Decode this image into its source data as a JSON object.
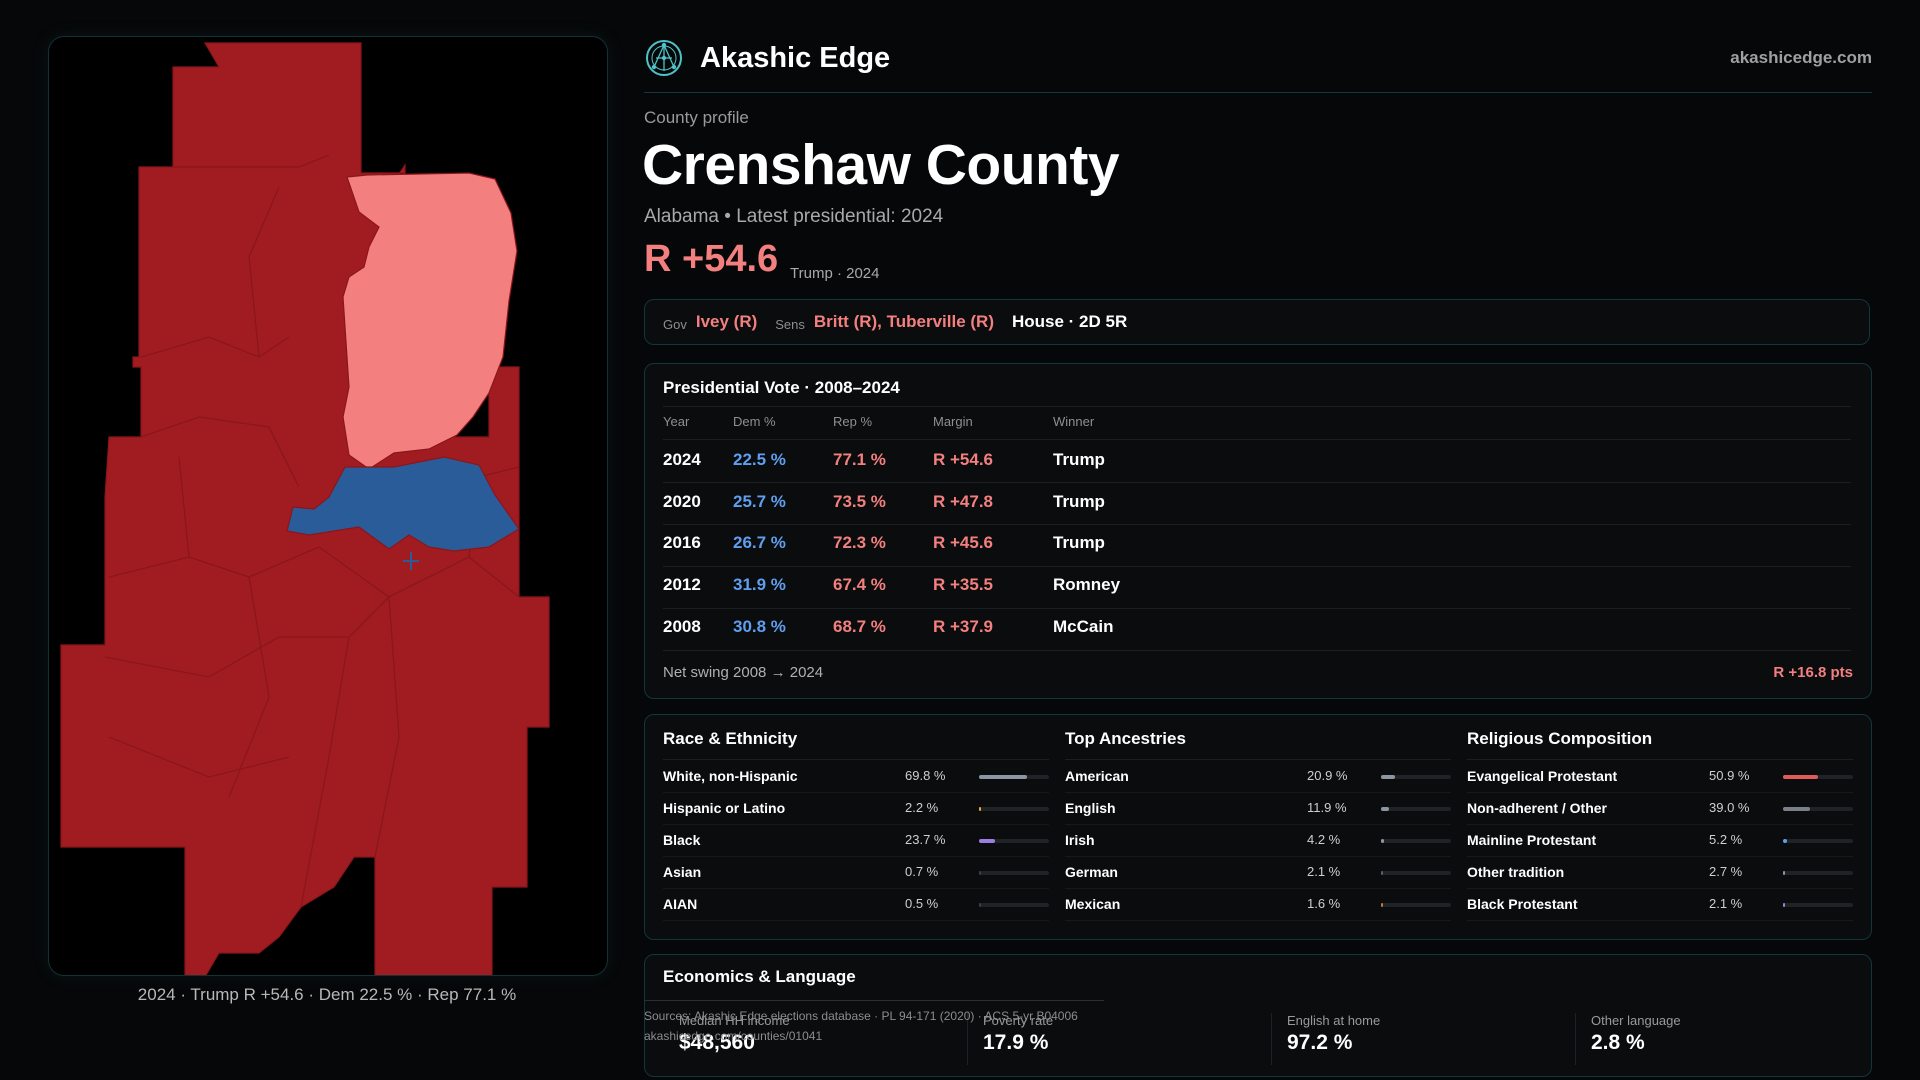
{
  "brand": {
    "name": "Akashic Edge",
    "domain": "akashicedge.com",
    "logo_icon": "network-globe-icon"
  },
  "profile": {
    "kicker": "County profile",
    "county": "Crenshaw County",
    "subtitle": "Alabama • Latest presidential: 2024",
    "margin": "R +54.6",
    "margin_note": "Trump · 2024"
  },
  "officials": {
    "gov_label": "Gov",
    "gov": "Ivey (R)",
    "sens_label": "Sens",
    "sens": "Britt (R), Tuberville (R)",
    "house": "House · 2D 5R"
  },
  "votes": {
    "title": "Presidential Vote · 2008–2024",
    "headers": {
      "year": "Year",
      "dem": "Dem %",
      "rep": "Rep %",
      "margin": "Margin",
      "winner": "Winner"
    },
    "rows": [
      {
        "year": "2024",
        "dem": "22.5 %",
        "rep": "77.1 %",
        "margin": "R +54.6",
        "winner": "Trump"
      },
      {
        "year": "2020",
        "dem": "25.7 %",
        "rep": "73.5 %",
        "margin": "R +47.8",
        "winner": "Trump"
      },
      {
        "year": "2016",
        "dem": "26.7 %",
        "rep": "72.3 %",
        "margin": "R +45.6",
        "winner": "Trump"
      },
      {
        "year": "2012",
        "dem": "31.9 %",
        "rep": "67.4 %",
        "margin": "R +35.5",
        "winner": "Romney"
      },
      {
        "year": "2008",
        "dem": "30.8 %",
        "rep": "68.7 %",
        "margin": "R +37.9",
        "winner": "McCain"
      }
    ],
    "swing_label": "Net swing 2008 → 2024",
    "swing_value": "R +16.8 pts"
  },
  "demographics": [
    {
      "title": "Race & Ethnicity",
      "rows": [
        {
          "label": "White, non-Hispanic",
          "value": "69.8 %",
          "share": 0.698,
          "color": "#8c96a3"
        },
        {
          "label": "Hispanic or Latino",
          "value": "2.2 %",
          "share": 0.022,
          "color": "#e8a33a"
        },
        {
          "label": "Black",
          "value": "23.7 %",
          "share": 0.237,
          "color": "#9b7fe0"
        },
        {
          "label": "Asian",
          "value": "0.7 %",
          "share": 0.007,
          "color": "#3a3f42"
        },
        {
          "label": "AIAN",
          "value": "0.5 %",
          "share": 0.005,
          "color": "#3a3f42"
        }
      ]
    },
    {
      "title": "Top Ancestries",
      "rows": [
        {
          "label": "American",
          "value": "20.9 %",
          "share": 0.209,
          "color": "#8c96a3"
        },
        {
          "label": "English",
          "value": "11.9 %",
          "share": 0.119,
          "color": "#8c96a3"
        },
        {
          "label": "Irish",
          "value": "4.2 %",
          "share": 0.042,
          "color": "#8c96a3"
        },
        {
          "label": "German",
          "value": "2.1 %",
          "share": 0.021,
          "color": "#5a5f62"
        },
        {
          "label": "Mexican",
          "value": "1.6 %",
          "share": 0.016,
          "color": "#c07a30"
        }
      ]
    },
    {
      "title": "Religious Composition",
      "rows": [
        {
          "label": "Evangelical Protestant",
          "value": "50.9 %",
          "share": 0.509,
          "color": "#e05a5a"
        },
        {
          "label": "Non-adherent / Other",
          "value": "39.0 %",
          "share": 0.39,
          "color": "#7a8088"
        },
        {
          "label": "Mainline Protestant",
          "value": "5.2 %",
          "share": 0.052,
          "color": "#5f9ff0"
        },
        {
          "label": "Other tradition",
          "value": "2.7 %",
          "share": 0.027,
          "color": "#8c96a3"
        },
        {
          "label": "Black Protestant",
          "value": "2.1 %",
          "share": 0.021,
          "color": "#9b7fe0"
        }
      ]
    }
  ],
  "economics": {
    "title": "Economics & Language",
    "items": [
      {
        "label": "Median HH income",
        "value": "$48,560"
      },
      {
        "label": "Poverty rate",
        "value": "17.9 %"
      },
      {
        "label": "English at home",
        "value": "97.2 %"
      },
      {
        "label": "Other language",
        "value": "2.8 %"
      }
    ]
  },
  "sources": {
    "line1": "Sources: Akashic Edge elections database · PL 94-171 (2020) · ACS 5-yr B04006",
    "line2": "akashicedge.com/counties/01041"
  },
  "map": {
    "caption": "2024 · Trump R +54.6 · Dem 22.5 % · Rep 77.1 %",
    "colors": {
      "strong_rep": "#a11c21",
      "lean_rep": "#f47f7f",
      "dem": "#2a5c9a",
      "border": "#8a161b"
    }
  }
}
